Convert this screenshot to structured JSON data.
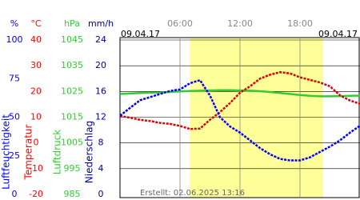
{
  "chart_data": {
    "type": "line",
    "date_left": "09.04.17",
    "date_right": "09.04.17",
    "footer": "Erstellt: 02.06.2025 13:16",
    "xlim": [
      0,
      24
    ],
    "xticks": [
      {
        "value": 6,
        "label": "06:00"
      },
      {
        "value": 12,
        "label": "12:00"
      },
      {
        "value": 18,
        "label": "18:00"
      }
    ],
    "daylight": [
      7,
      20.3
    ],
    "axes": [
      {
        "unit": "%",
        "label": "Luftfeuchtigkeit",
        "color": "#0000ff",
        "lim": [
          0,
          100
        ],
        "ticks": [
          0,
          25,
          50,
          75,
          100
        ],
        "rows": false
      },
      {
        "unit": "°C",
        "label": "Temperatur",
        "color": "#ff0000",
        "lim": [
          -20,
          40
        ],
        "ticks": [
          -20,
          -10,
          0,
          10,
          20,
          30,
          40
        ],
        "rows": true
      },
      {
        "unit": "hPa",
        "label": "Luftdruck",
        "color": "#33cc33",
        "lim": [
          985,
          1045
        ],
        "ticks": [
          985,
          995,
          1005,
          1015,
          1025,
          1035,
          1045
        ],
        "rows": true
      },
      {
        "unit": "mm/h",
        "label": "Niederschlag",
        "color": "#000099",
        "lim": [
          0,
          24
        ],
        "ticks": [
          0,
          4,
          8,
          12,
          16,
          20,
          24
        ],
        "rows": true
      }
    ],
    "x": [
      0,
      1,
      2,
      3,
      4,
      5,
      6,
      7,
      8,
      9,
      10,
      11,
      12,
      13,
      14,
      15,
      16,
      17,
      18,
      19,
      20,
      21,
      22,
      23,
      24
    ],
    "series": [
      {
        "axis": 2,
        "color": "#33cc33",
        "values": [
          1024,
          1024.2,
          1024.4,
          1024.5,
          1024.6,
          1024.8,
          1025,
          1025.2,
          1025.3,
          1025.4,
          1025.5,
          1025.5,
          1025.4,
          1025.3,
          1025.1,
          1024.8,
          1024.4,
          1024,
          1023.6,
          1023.3,
          1023.1,
          1023.1,
          1023.2,
          1023.3,
          1023.4
        ]
      },
      {
        "axis": 1,
        "color": "#dd0000",
        "values": [
          10.5,
          9.8,
          9,
          8.5,
          7.8,
          7.4,
          6.6,
          5.4,
          5.6,
          9,
          12,
          15.5,
          19.5,
          22,
          25,
          26.5,
          27.5,
          27,
          25.5,
          24.5,
          23.5,
          22,
          18.5,
          16.5,
          15.2
        ]
      },
      {
        "axis": 0,
        "color": "#0000ff",
        "values": [
          51,
          56,
          61,
          63,
          65,
          67,
          68,
          72,
          74,
          64,
          50,
          44,
          40,
          35,
          30,
          26,
          23,
          22,
          22,
          24,
          27.5,
          31,
          35,
          40,
          44.5
        ]
      }
    ]
  }
}
